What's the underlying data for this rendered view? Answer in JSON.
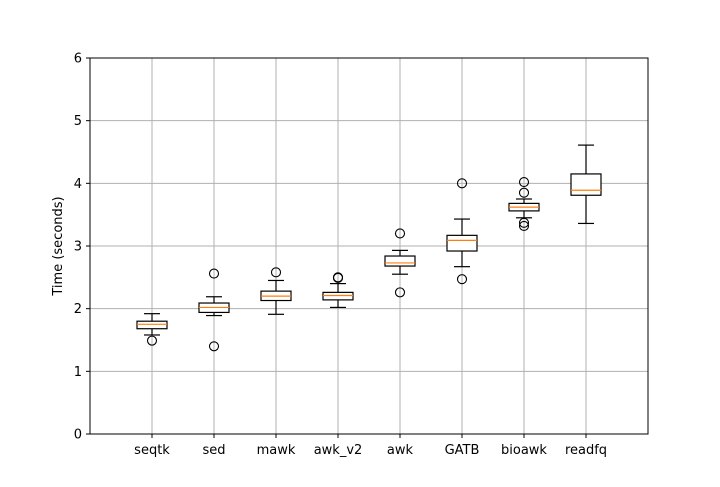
{
  "chart_data": {
    "type": "boxplot",
    "title": "",
    "xlabel": "",
    "ylabel": "Time (seconds)",
    "ylim": [
      0,
      6
    ],
    "yticks": [
      0,
      1,
      2,
      3,
      4,
      5,
      6
    ],
    "grid": true,
    "categories": [
      "seqtk",
      "sed",
      "mawk",
      "awk_v2",
      "awk",
      "GATB",
      "bioawk",
      "readfq"
    ],
    "boxes": [
      {
        "name": "seqtk",
        "whisker_low": 1.58,
        "q1": 1.68,
        "median": 1.75,
        "q3": 1.8,
        "whisker_high": 1.92,
        "outliers": [
          1.49
        ]
      },
      {
        "name": "sed",
        "whisker_low": 1.89,
        "q1": 1.94,
        "median": 2.02,
        "q3": 2.09,
        "whisker_high": 2.19,
        "outliers": [
          2.56,
          1.4
        ]
      },
      {
        "name": "mawk",
        "whisker_low": 1.91,
        "q1": 2.13,
        "median": 2.2,
        "q3": 2.28,
        "whisker_high": 2.45,
        "outliers": [
          2.58
        ]
      },
      {
        "name": "awk_v2",
        "whisker_low": 2.02,
        "q1": 2.14,
        "median": 2.21,
        "q3": 2.26,
        "whisker_high": 2.4,
        "outliers": [
          2.49,
          2.5
        ]
      },
      {
        "name": "awk",
        "whisker_low": 2.55,
        "q1": 2.68,
        "median": 2.73,
        "q3": 2.84,
        "whisker_high": 2.93,
        "outliers": [
          3.2,
          2.26
        ]
      },
      {
        "name": "GATB",
        "whisker_low": 2.67,
        "q1": 2.92,
        "median": 3.09,
        "q3": 3.17,
        "whisker_high": 3.43,
        "outliers": [
          4.0,
          2.47
        ]
      },
      {
        "name": "bioawk",
        "whisker_low": 3.45,
        "q1": 3.56,
        "median": 3.62,
        "q3": 3.68,
        "whisker_high": 3.75,
        "outliers": [
          4.02,
          3.85,
          3.37,
          3.32
        ]
      },
      {
        "name": "readfq",
        "whisker_low": 3.36,
        "q1": 3.81,
        "median": 3.89,
        "q3": 4.15,
        "whisker_high": 4.61,
        "outliers": []
      }
    ],
    "colors": {
      "box": "#000000",
      "median": "#ff7f0e",
      "grid": "#b0b0b0",
      "background": "#ffffff"
    }
  }
}
